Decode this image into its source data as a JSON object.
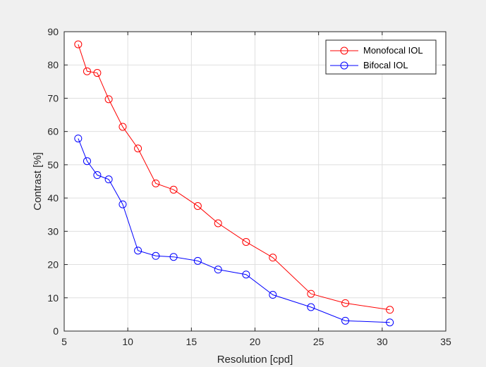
{
  "chart_data": {
    "type": "line",
    "xlabel": "Resolution [cpd]",
    "ylabel": "Contrast [%]",
    "xlim": [
      5,
      35
    ],
    "ylim": [
      0,
      90
    ],
    "xticks": [
      5,
      10,
      15,
      20,
      25,
      30,
      35
    ],
    "yticks": [
      0,
      10,
      20,
      30,
      40,
      50,
      60,
      70,
      80,
      90
    ],
    "grid": true,
    "legend_position": "top-right",
    "marker": "circle",
    "series": [
      {
        "name": "Monofocal IOL",
        "color": "#ff0000",
        "x": [
          6.1,
          6.8,
          7.6,
          8.5,
          9.6,
          10.8,
          12.2,
          13.6,
          15.5,
          17.1,
          19.3,
          21.4,
          24.4,
          27.1,
          30.6
        ],
        "y": [
          86.2,
          78.1,
          77.6,
          69.7,
          61.4,
          54.9,
          44.4,
          42.5,
          37.6,
          32.4,
          26.8,
          22.1,
          11.2,
          8.4,
          6.4
        ]
      },
      {
        "name": "Bifocal IOL",
        "color": "#0000ff",
        "x": [
          6.1,
          6.8,
          7.6,
          8.5,
          9.6,
          10.8,
          12.2,
          13.6,
          15.5,
          17.1,
          19.3,
          21.4,
          24.4,
          27.1,
          30.6
        ],
        "y": [
          57.9,
          51.1,
          46.9,
          45.6,
          38.1,
          24.2,
          22.6,
          22.3,
          21.1,
          18.5,
          17.0,
          10.9,
          7.2,
          3.1,
          2.6
        ]
      }
    ]
  }
}
